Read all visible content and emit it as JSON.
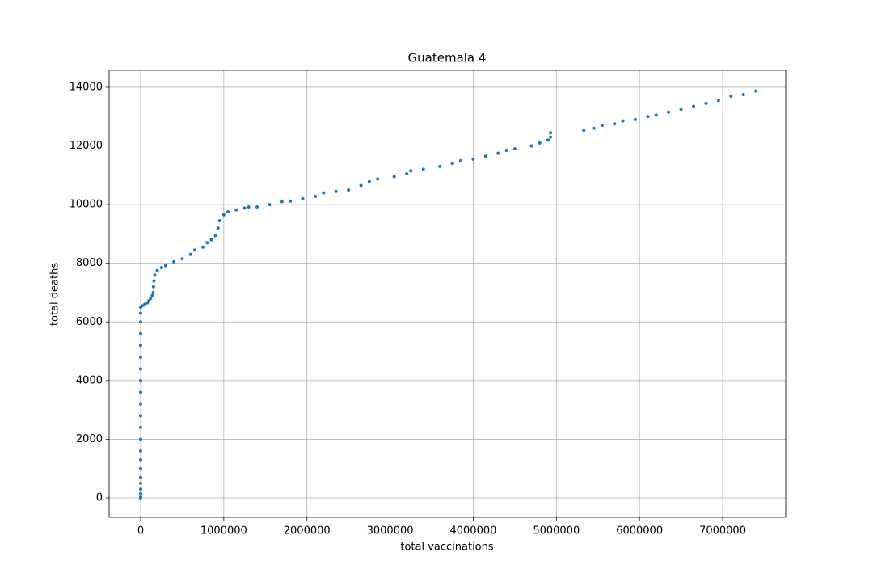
{
  "chart_data": {
    "type": "scatter",
    "title": "Guatemala 4",
    "x_label": "total vaccinations",
    "y_label": "total deaths",
    "color": "#1f77b4",
    "grid": true,
    "xlim": [
      -379000,
      7758000
    ],
    "ylim": [
      -661,
      14577
    ],
    "xticks": [
      0,
      1000000,
      2000000,
      3000000,
      4000000,
      5000000,
      6000000,
      7000000
    ],
    "yticks": [
      0,
      2000,
      4000,
      6000,
      8000,
      10000,
      12000,
      14000
    ],
    "x": [
      0,
      0,
      0,
      0,
      0,
      0,
      0,
      0,
      0,
      0,
      0,
      0,
      0,
      0,
      0,
      0,
      0,
      0,
      0,
      0,
      0,
      0,
      20000,
      50000,
      80000,
      100000,
      120000,
      140000,
      150000,
      155000,
      160000,
      170000,
      200000,
      250000,
      300000,
      400000,
      500000,
      600000,
      650000,
      750000,
      800000,
      850000,
      900000,
      930000,
      950000,
      1000000,
      1050000,
      1150000,
      1250000,
      1300000,
      1400000,
      1550000,
      1700000,
      1800000,
      1950000,
      2100000,
      2200000,
      2350000,
      2500000,
      2650000,
      2750000,
      2850000,
      3050000,
      3200000,
      3250000,
      3400000,
      3600000,
      3750000,
      3850000,
      4000000,
      4150000,
      4300000,
      4400000,
      4500000,
      4700000,
      4800000,
      4900000,
      4930000,
      4930000,
      5330000,
      5450000,
      5550000,
      5700000,
      5800000,
      5950000,
      6100000,
      6200000,
      6350000,
      6500000,
      6650000,
      6800000,
      6950000,
      7100000,
      7250000,
      7400000
    ],
    "values": [
      0,
      50,
      150,
      300,
      500,
      700,
      1000,
      1300,
      1600,
      2000,
      2400,
      2800,
      3200,
      3600,
      4000,
      4400,
      4800,
      5200,
      5600,
      6000,
      6300,
      6500,
      6550,
      6600,
      6650,
      6720,
      6800,
      6900,
      7000,
      7200,
      7400,
      7600,
      7750,
      7850,
      7920,
      8050,
      8150,
      8300,
      8450,
      8550,
      8700,
      8800,
      8950,
      9200,
      9450,
      9650,
      9750,
      9820,
      9880,
      9920,
      9920,
      10000,
      10100,
      10120,
      10200,
      10280,
      10400,
      10450,
      10500,
      10650,
      10780,
      10870,
      10950,
      11050,
      11150,
      11200,
      11300,
      11400,
      11500,
      11550,
      11650,
      11750,
      11850,
      11900,
      12000,
      12100,
      12200,
      12300,
      12450,
      12530,
      12600,
      12700,
      12750,
      12850,
      12900,
      13000,
      13050,
      13150,
      13250,
      13350,
      13450,
      13550,
      13700,
      13750,
      13870
    ]
  }
}
